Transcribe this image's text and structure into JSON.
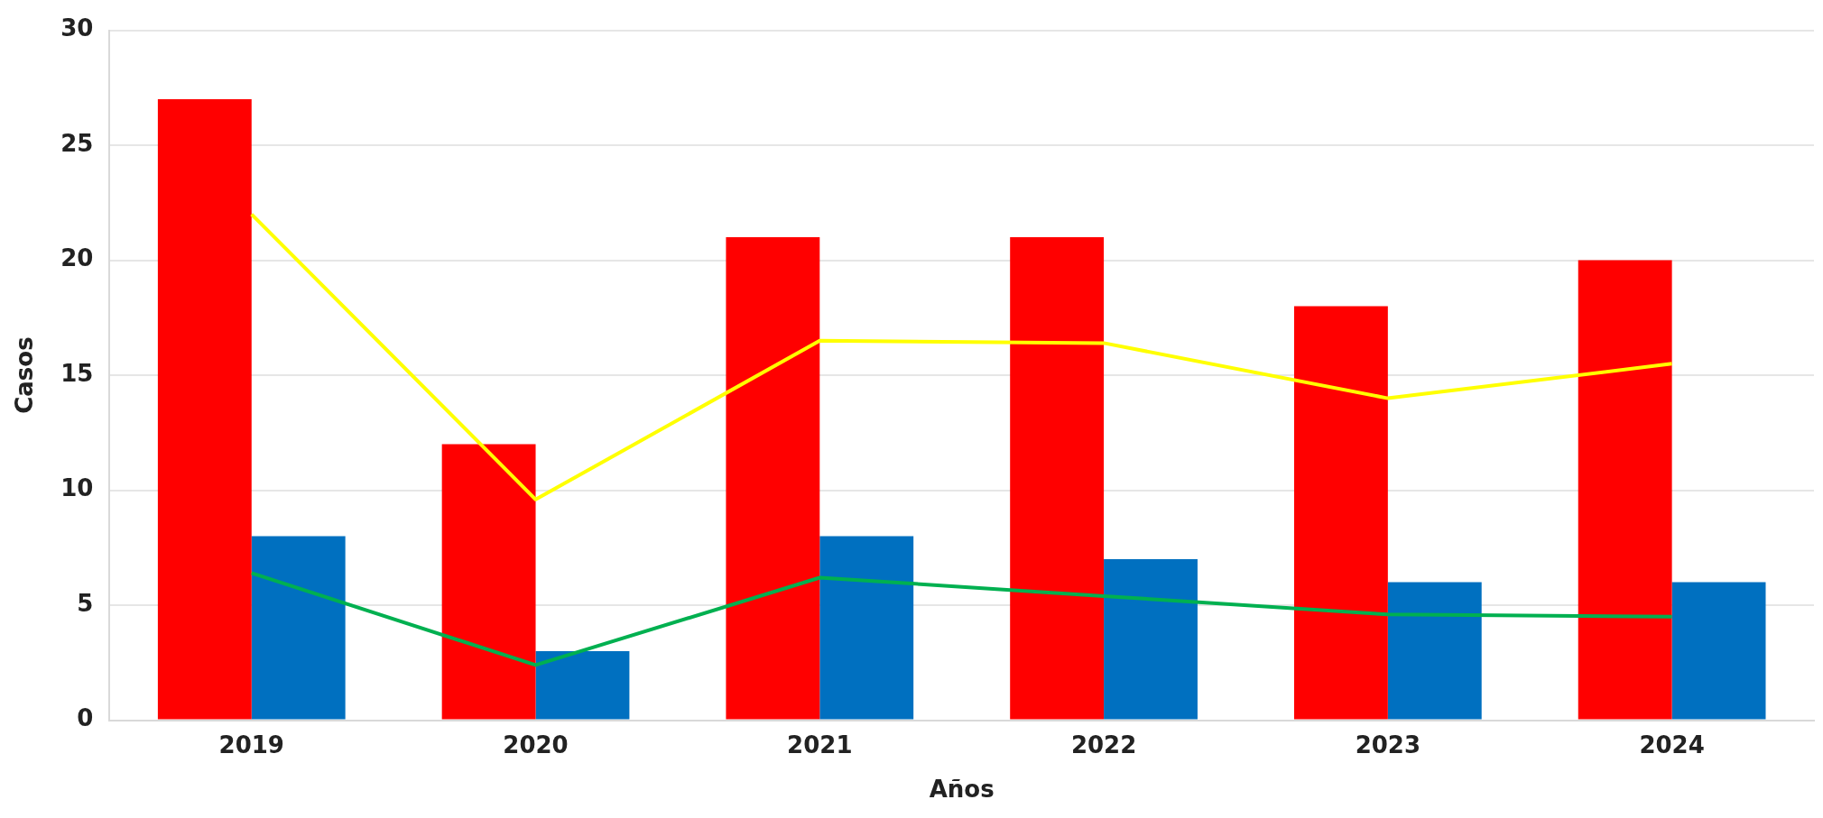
{
  "chart_data": {
    "type": "bar",
    "xlabel": "Años",
    "ylabel": "Casos",
    "categories": [
      "2019",
      "2020",
      "2021",
      "2022",
      "2023",
      "2024"
    ],
    "series": [
      {
        "color": "#ff0000",
        "values": [
          27,
          12,
          21,
          21,
          18,
          20
        ]
      },
      {
        "color": "#0070c0",
        "values": [
          8,
          3,
          8,
          7,
          6,
          6
        ]
      },
      {
        "type": "line",
        "color": "#ffff00",
        "values": [
          22.0,
          9.6,
          16.5,
          16.4,
          14.0,
          15.5
        ]
      },
      {
        "type": "line",
        "color": "#00b050",
        "values": [
          6.4,
          2.4,
          6.2,
          5.4,
          4.6,
          4.5
        ]
      }
    ],
    "ylim": [
      0,
      30
    ],
    "yticks": [
      0,
      5,
      10,
      15,
      20,
      25,
      30
    ],
    "grid": "y",
    "legend": false,
    "marker": "none",
    "line_style": "solid"
  }
}
